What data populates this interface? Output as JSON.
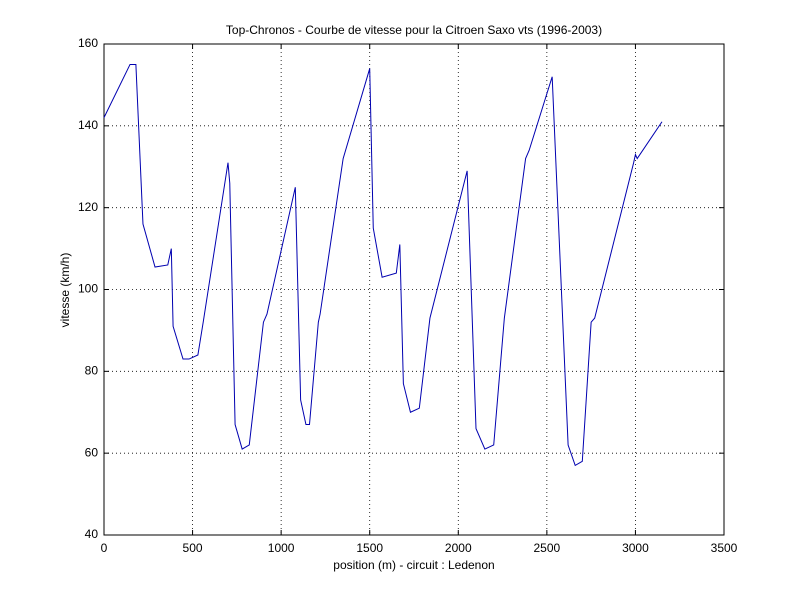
{
  "chart_data": {
    "type": "line",
    "title": "Top-Chronos - Courbe de vitesse pour la Citroen Saxo vts (1996-2003)",
    "x_label": "position (m) - circuit : Ledenon",
    "y_label": "vitesse (km/h)",
    "x": [
      0,
      147,
      180,
      220,
      288,
      360,
      380,
      390,
      446,
      480,
      530,
      560,
      700,
      710,
      740,
      780,
      820,
      900,
      920,
      1080,
      1110,
      1140,
      1160,
      1210,
      1220,
      1350,
      1500,
      1520,
      1570,
      1650,
      1670,
      1690,
      1730,
      1780,
      1840,
      2050,
      2100,
      2150,
      2200,
      2260,
      2380,
      2400,
      2530,
      2620,
      2660,
      2700,
      2750,
      2770,
      2990,
      3000,
      3010,
      3150
    ],
    "values": [
      142,
      155,
      155,
      116,
      105.5,
      106,
      110,
      91,
      83,
      83,
      84,
      92,
      131,
      126,
      67,
      61,
      62,
      92,
      94,
      125,
      73,
      67,
      67,
      92,
      94,
      132,
      154,
      115,
      103,
      104,
      111,
      77,
      70,
      71,
      93,
      129,
      66,
      61,
      62,
      93,
      132,
      134,
      152,
      62,
      57,
      58,
      92,
      93,
      131,
      133,
      132,
      141
    ],
    "color": "#0000b0",
    "xlim": [
      0,
      3500
    ],
    "xticks": [
      0,
      500,
      1000,
      1500,
      2000,
      2500,
      3000,
      3500
    ],
    "ylim": [
      40,
      160
    ],
    "yticks": [
      40,
      60,
      80,
      100,
      120,
      140,
      160
    ],
    "grid": true
  }
}
